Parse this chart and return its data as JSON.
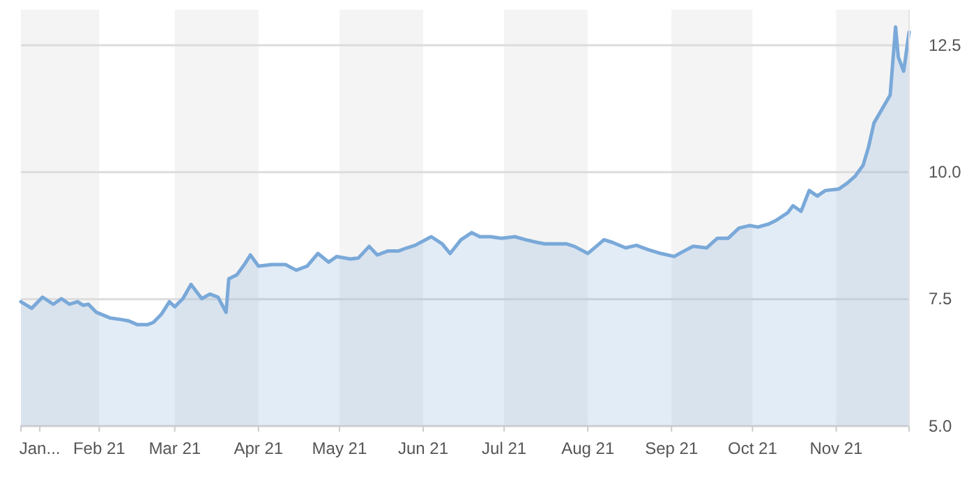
{
  "chart_data": {
    "type": "area",
    "x": [
      "2021-01-03",
      "2021-01-07",
      "2021-01-11",
      "2021-01-15",
      "2021-01-18",
      "2021-01-21",
      "2021-01-24",
      "2021-01-26",
      "2021-01-28",
      "2021-01-31",
      "2021-02-05",
      "2021-02-09",
      "2021-02-12",
      "2021-02-15",
      "2021-02-19",
      "2021-02-21",
      "2021-02-24",
      "2021-02-27",
      "2021-03-01",
      "2021-03-04",
      "2021-03-07",
      "2021-03-11",
      "2021-03-14",
      "2021-03-17",
      "2021-03-20",
      "2021-03-21",
      "2021-03-24",
      "2021-03-27",
      "2021-03-29",
      "2021-04-01",
      "2021-04-06",
      "2021-04-11",
      "2021-04-15",
      "2021-04-19",
      "2021-04-23",
      "2021-04-27",
      "2021-04-30",
      "2021-05-05",
      "2021-05-08",
      "2021-05-12",
      "2021-05-15",
      "2021-05-19",
      "2021-05-23",
      "2021-05-26",
      "2021-05-29",
      "2021-06-04",
      "2021-06-08",
      "2021-06-11",
      "2021-06-15",
      "2021-06-19",
      "2021-06-22",
      "2021-06-26",
      "2021-06-30",
      "2021-07-05",
      "2021-07-09",
      "2021-07-13",
      "2021-07-16",
      "2021-07-20",
      "2021-07-24",
      "2021-07-27",
      "2021-08-01",
      "2021-08-07",
      "2021-08-10",
      "2021-08-15",
      "2021-08-19",
      "2021-08-23",
      "2021-08-28",
      "2021-09-02",
      "2021-09-05",
      "2021-09-09",
      "2021-09-14",
      "2021-09-18",
      "2021-09-22",
      "2021-09-26",
      "2021-09-30",
      "2021-10-03",
      "2021-10-07",
      "2021-10-10",
      "2021-10-14",
      "2021-10-16",
      "2021-10-19",
      "2021-10-22",
      "2021-10-25",
      "2021-10-28",
      "2021-11-02",
      "2021-11-05",
      "2021-11-08",
      "2021-11-11",
      "2021-11-13",
      "2021-11-15",
      "2021-11-21",
      "2021-11-23",
      "2021-11-24",
      "2021-11-26",
      "2021-11-28"
    ],
    "series": [
      {
        "color": "#7aa9d9",
        "values": [
          7.45,
          7.32,
          7.54,
          7.4,
          7.51,
          7.4,
          7.45,
          7.38,
          7.4,
          7.24,
          7.13,
          7.1,
          7.07,
          7.0,
          7.0,
          7.04,
          7.2,
          7.45,
          7.35,
          7.51,
          7.79,
          7.51,
          7.6,
          7.54,
          7.24,
          7.9,
          7.98,
          8.2,
          8.37,
          8.15,
          8.18,
          8.18,
          8.07,
          8.15,
          8.4,
          8.23,
          8.34,
          8.29,
          8.31,
          8.54,
          8.37,
          8.45,
          8.45,
          8.51,
          8.56,
          8.73,
          8.59,
          8.4,
          8.67,
          8.81,
          8.73,
          8.73,
          8.7,
          8.73,
          8.67,
          8.62,
          8.59,
          8.59,
          8.59,
          8.54,
          8.4,
          8.67,
          8.62,
          8.51,
          8.56,
          8.48,
          8.4,
          8.34,
          8.43,
          8.54,
          8.51,
          8.7,
          8.7,
          8.9,
          8.95,
          8.92,
          8.98,
          9.06,
          9.2,
          9.34,
          9.23,
          9.64,
          9.53,
          9.64,
          9.67,
          9.78,
          9.92,
          10.14,
          10.5,
          10.97,
          11.52,
          12.86,
          12.27,
          11.99,
          12.76
        ]
      }
    ],
    "xlim": [
      "2021-01-03",
      "2021-11-28"
    ],
    "xticks": [
      {
        "value": "2021-01-10",
        "label": "Jan..."
      },
      {
        "value": "2021-02-01",
        "label": "Feb 21"
      },
      {
        "value": "2021-03-01",
        "label": "Mar 21"
      },
      {
        "value": "2021-04-01",
        "label": "Apr 21"
      },
      {
        "value": "2021-05-01",
        "label": "May 21"
      },
      {
        "value": "2021-06-01",
        "label": "Jun 21"
      },
      {
        "value": "2021-07-01",
        "label": "Jul 21"
      },
      {
        "value": "2021-08-01",
        "label": "Aug 21"
      },
      {
        "value": "2021-09-01",
        "label": "Sep 21"
      },
      {
        "value": "2021-10-01",
        "label": "Oct 21"
      },
      {
        "value": "2021-11-01",
        "label": "Nov 21"
      }
    ],
    "ylim": [
      5,
      13.2
    ],
    "yticks": [
      {
        "value": 5,
        "label": "5.0"
      },
      {
        "value": 7.5,
        "label": "7.5"
      },
      {
        "value": 10,
        "label": "10.0"
      },
      {
        "value": 12.5,
        "label": "12.5"
      }
    ],
    "grid": "y",
    "bands": [
      {
        "axis": "x",
        "from": "2021-01-03",
        "to": "2021-02-01",
        "color": "#f4f4f4"
      },
      {
        "axis": "x",
        "from": "2021-03-01",
        "to": "2021-04-01",
        "color": "#f4f4f4"
      },
      {
        "axis": "x",
        "from": "2021-05-01",
        "to": "2021-06-01",
        "color": "#f4f4f4"
      },
      {
        "axis": "x",
        "from": "2021-07-01",
        "to": "2021-08-01",
        "color": "#f4f4f4"
      },
      {
        "axis": "x",
        "from": "2021-09-01",
        "to": "2021-10-01",
        "color": "#f4f4f4"
      },
      {
        "axis": "x",
        "from": "2021-11-01",
        "to": "2021-11-28",
        "color": "#f4f4f4"
      }
    ]
  }
}
